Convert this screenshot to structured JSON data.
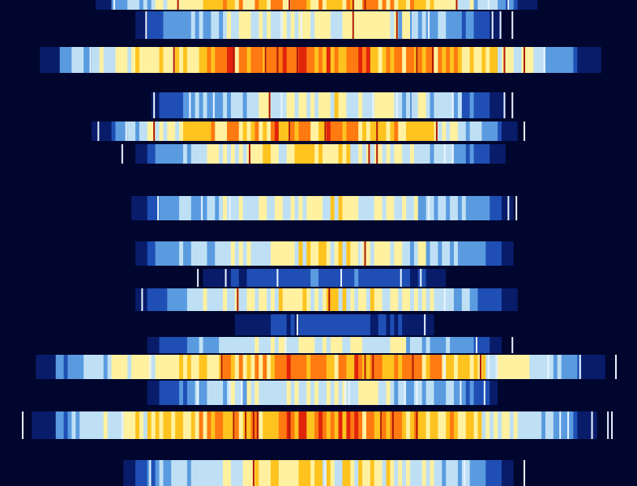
{
  "chart_data": {
    "type": "heatmap",
    "title": "",
    "xlabel": "",
    "ylabel": "",
    "colormap": [
      "#00062e",
      "#081c6a",
      "#1f4fb4",
      "#5a9be0",
      "#bfe0f4",
      "#fff1a0",
      "#ffc31f",
      "#ff7a10",
      "#e0240a"
    ],
    "rows": [
      {
        "intensity": 0.85,
        "span": [
          0.14,
          0.85
        ]
      },
      {
        "intensity": 0.62,
        "span": [
          0.2,
          0.8
        ]
      },
      {
        "intensity": 0.92,
        "span": [
          0.05,
          0.95
        ]
      },
      {
        "intensity": 0.0,
        "span": [
          0.0,
          0.0
        ]
      },
      {
        "intensity": 0.64,
        "span": [
          0.22,
          0.8
        ]
      },
      {
        "intensity": 0.88,
        "span": [
          0.14,
          0.82
        ]
      },
      {
        "intensity": 0.7,
        "span": [
          0.2,
          0.8
        ]
      },
      {
        "intensity": 0.0,
        "span": [
          0.0,
          0.0
        ]
      },
      {
        "intensity": 0.66,
        "span": [
          0.2,
          0.82
        ]
      },
      {
        "intensity": 0.0,
        "span": [
          0.0,
          0.0
        ]
      },
      {
        "intensity": 0.66,
        "span": [
          0.2,
          0.82
        ]
      },
      {
        "intensity": 0.3,
        "span": [
          0.3,
          0.72
        ]
      },
      {
        "intensity": 0.68,
        "span": [
          0.2,
          0.82
        ]
      },
      {
        "intensity": 0.25,
        "span": [
          0.35,
          0.7
        ]
      },
      {
        "intensity": 0.6,
        "span": [
          0.22,
          0.8
        ]
      },
      {
        "intensity": 0.88,
        "span": [
          0.04,
          0.96
        ]
      },
      {
        "intensity": 0.62,
        "span": [
          0.22,
          0.8
        ]
      },
      {
        "intensity": 0.9,
        "span": [
          0.04,
          0.95
        ]
      },
      {
        "intensity": 0.0,
        "span": [
          0.0,
          0.0
        ]
      },
      {
        "intensity": 0.7,
        "span": [
          0.18,
          0.82
        ]
      }
    ],
    "columns": 160,
    "grid": false,
    "legend": "none"
  }
}
